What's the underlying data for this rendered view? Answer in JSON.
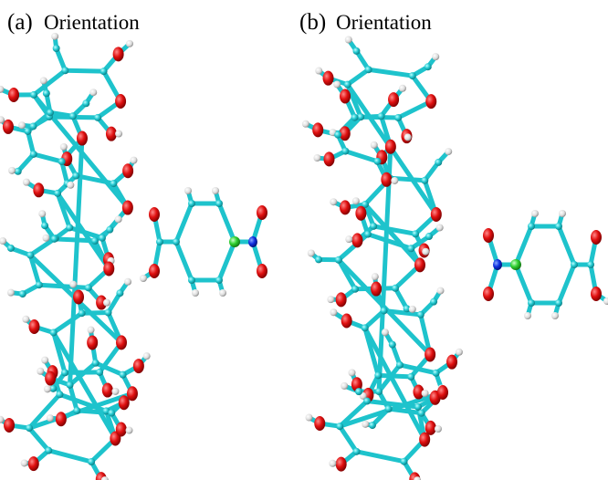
{
  "panels": [
    {
      "label": "(a)",
      "caption": "Orientation"
    },
    {
      "label": "(b)",
      "caption": "Orientation"
    }
  ]
}
